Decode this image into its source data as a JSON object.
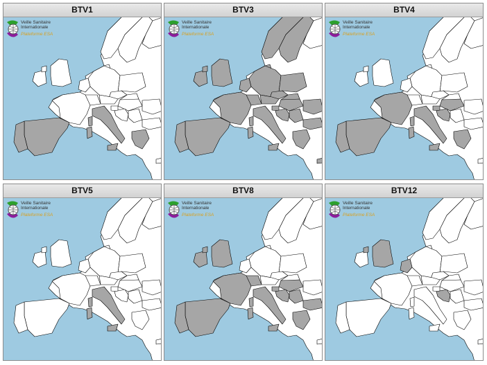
{
  "colors": {
    "sea": "#9ecae1",
    "land": "#ffffff",
    "affected": "#a6a6a6",
    "border": "#000000"
  },
  "logo": {
    "line1": "Veille Sanitaire",
    "line2": "Internationale",
    "line3": "Plateforme ESA"
  },
  "panels": [
    {
      "title": "BTV1",
      "affected": [
        "spain",
        "portugal",
        "italy",
        "sardinia",
        "corsica",
        "sicily",
        "greece"
      ]
    },
    {
      "title": "BTV3",
      "affected": [
        "spain",
        "portugal",
        "france",
        "corsica",
        "uk",
        "ireland",
        "northern_ireland",
        "benelux",
        "germany",
        "switzerland",
        "austria",
        "denmark",
        "sweden",
        "norway",
        "poland",
        "czech",
        "slovakia",
        "hungary",
        "italy",
        "sardinia",
        "sicily",
        "croatia",
        "serbia",
        "romania",
        "bulgaria",
        "greece",
        "cyprus",
        "slovenia"
      ]
    },
    {
      "title": "BTV4",
      "affected": [
        "spain",
        "portugal",
        "france",
        "corsica",
        "italy",
        "sardinia",
        "sicily",
        "croatia",
        "slovenia",
        "hungary",
        "greece"
      ]
    },
    {
      "title": "BTV5",
      "affected": [
        "italy",
        "sardinia",
        "sicily",
        "corsica"
      ]
    },
    {
      "title": "BTV8",
      "affected": [
        "spain",
        "portugal",
        "france",
        "corsica",
        "uk",
        "ireland",
        "northern_ireland",
        "switzerland",
        "italy",
        "sardinia",
        "sicily",
        "croatia",
        "serbia",
        "slovenia",
        "bulgaria",
        "greece",
        "hungary"
      ]
    },
    {
      "title": "BTV12",
      "affected": [
        "uk",
        "northern_ireland",
        "benelux",
        "croatia"
      ]
    }
  ]
}
